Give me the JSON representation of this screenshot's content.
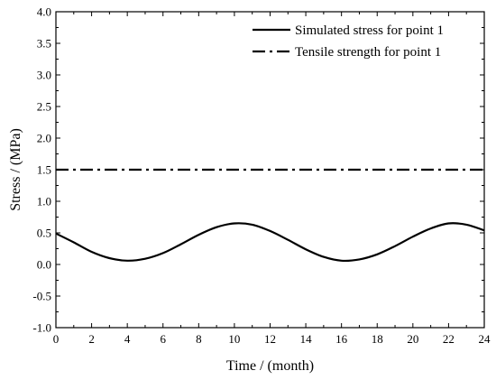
{
  "chart_data": {
    "type": "line",
    "title": "",
    "xlabel": "Time / (month)",
    "ylabel": "Stress / (MPa)",
    "xlim": [
      0,
      24
    ],
    "ylim": [
      -1.0,
      4.0
    ],
    "xticks": [
      "0",
      "2",
      "4",
      "6",
      "8",
      "10",
      "12",
      "14",
      "16",
      "18",
      "20",
      "22",
      "24"
    ],
    "yticks": [
      "-1.0",
      "-0.5",
      "0.0",
      "0.5",
      "1.0",
      "1.5",
      "2.0",
      "2.5",
      "3.0",
      "3.5",
      "4.0"
    ],
    "grid": false,
    "legend_position": "top-right",
    "series": [
      {
        "name": "Simulated stress for point 1",
        "style": "solid",
        "color": "#000000",
        "x": [
          0,
          1,
          2,
          3,
          4,
          5,
          6,
          7,
          8,
          9,
          10,
          11,
          12,
          13,
          14,
          15,
          16,
          17,
          18,
          19,
          20,
          21,
          22,
          23,
          24
        ],
        "y": [
          0.49,
          0.35,
          0.2,
          0.1,
          0.06,
          0.09,
          0.18,
          0.32,
          0.47,
          0.59,
          0.65,
          0.63,
          0.53,
          0.39,
          0.24,
          0.12,
          0.06,
          0.08,
          0.16,
          0.29,
          0.44,
          0.57,
          0.65,
          0.63,
          0.54
        ]
      },
      {
        "name": "Tensile strength for point 1",
        "style": "dashdot",
        "color": "#000000",
        "x": [
          0,
          24
        ],
        "y": [
          1.5,
          1.5
        ]
      }
    ]
  }
}
